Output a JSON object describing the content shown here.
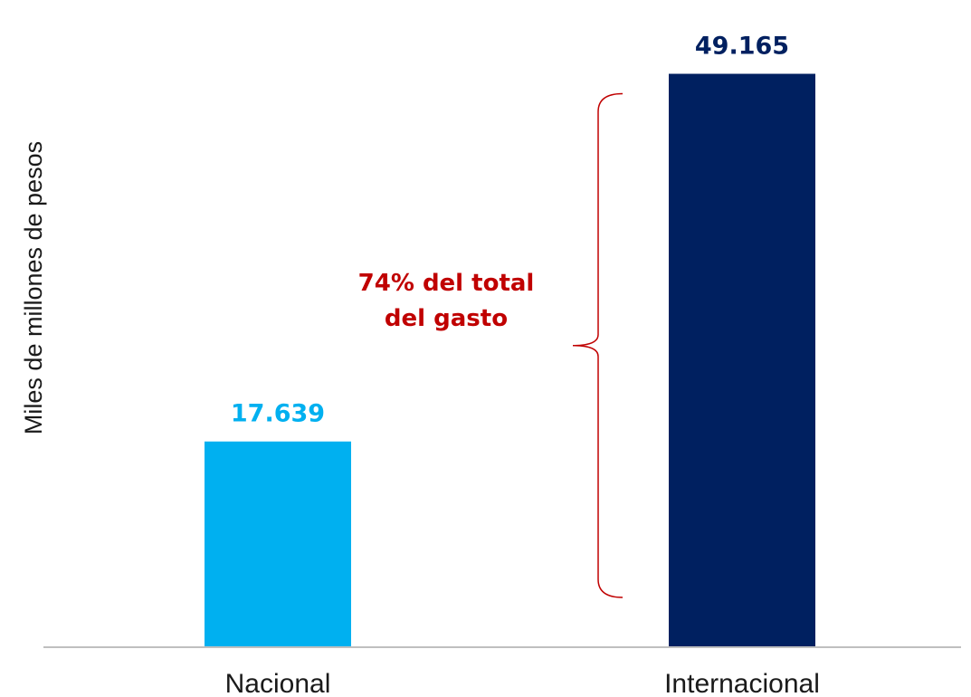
{
  "chart_data": {
    "type": "bar",
    "title": "",
    "xlabel": "",
    "ylabel": "Miles de millones de pesos",
    "categories": [
      "Nacional",
      "Internacional"
    ],
    "values": [
      17639,
      49165
    ],
    "value_labels": [
      "17.639",
      "49.165"
    ],
    "colors": [
      "#00B0F0",
      "#002060"
    ],
    "ylim": [
      0,
      52000
    ],
    "grid": false,
    "annotation": {
      "lines": [
        "74% del total",
        "del gasto"
      ],
      "color": "#C00000",
      "target_category": "Internacional"
    },
    "axis_color": "#BFBFBF"
  }
}
